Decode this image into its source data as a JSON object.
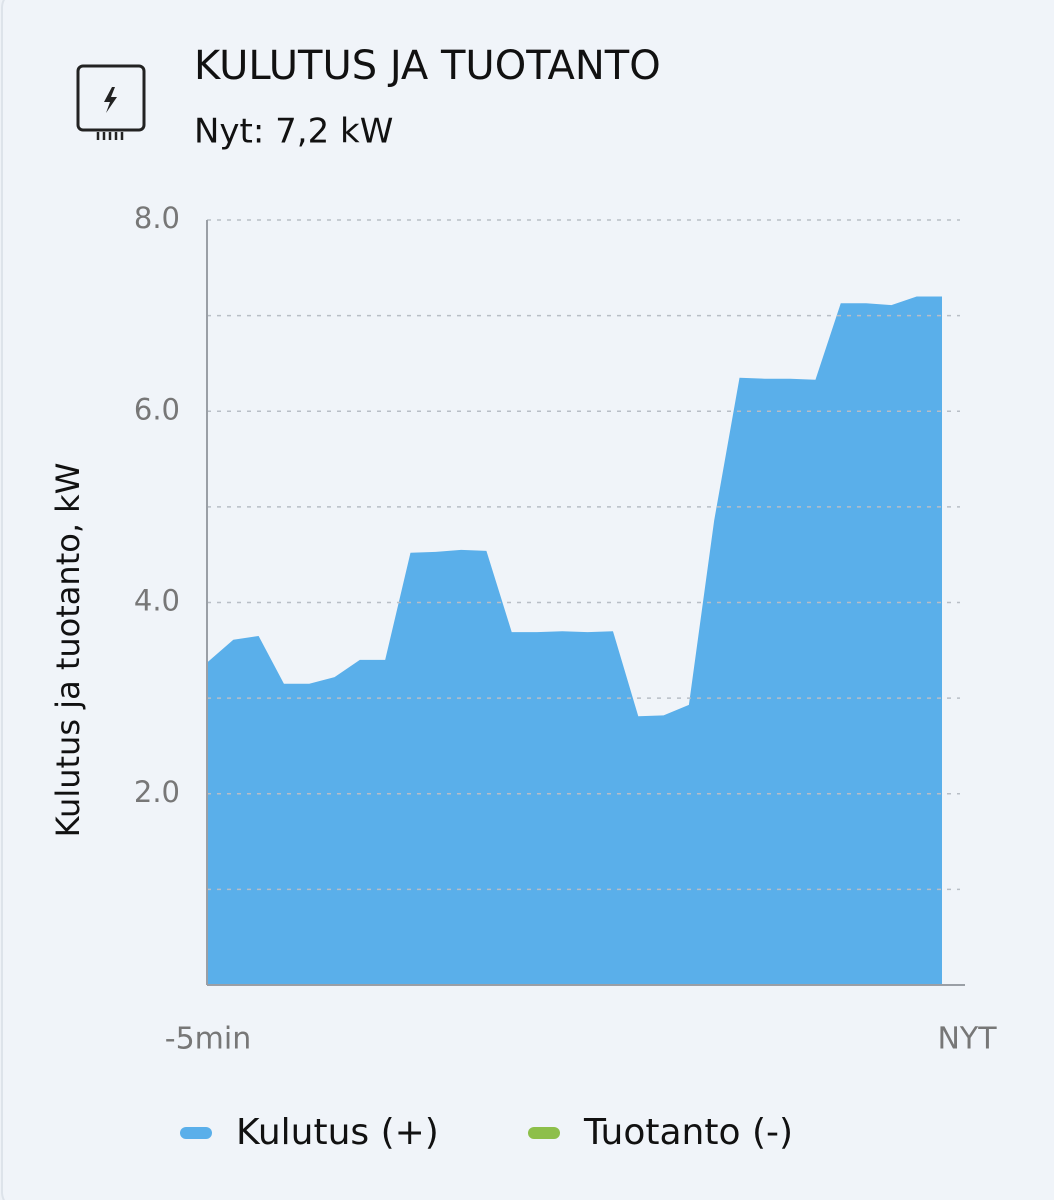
{
  "header": {
    "title": "KULUTUS JA TUOTANTO",
    "subtitle": "Nyt: 7,2 kW"
  },
  "chart_data": {
    "type": "area",
    "y_label": "Kulutus ja tuotanto, kW",
    "categories": [
      "-5min",
      null,
      null,
      null,
      null,
      null,
      null,
      null,
      null,
      null,
      null,
      null,
      null,
      null,
      null,
      null,
      null,
      null,
      null,
      null,
      null,
      null,
      null,
      null,
      null,
      null,
      null,
      null,
      null,
      "NYT"
    ],
    "series": [
      {
        "name": "Kulutus (+)",
        "color": "#5aafea",
        "values": [
          3.38,
          3.61,
          3.65,
          3.15,
          3.15,
          3.22,
          3.4,
          3.4,
          4.52,
          4.53,
          4.55,
          4.54,
          3.69,
          3.69,
          3.7,
          3.69,
          3.7,
          2.81,
          2.82,
          2.93,
          4.86,
          6.35,
          6.34,
          6.34,
          6.33,
          7.13,
          7.13,
          7.11,
          7.2,
          7.2
        ]
      },
      {
        "name": "Tuotanto (-)",
        "color": "#8dbf4a"
      }
    ],
    "ylim": [
      0,
      8
    ],
    "yticks": [
      {
        "value": 2,
        "label": "2.0"
      },
      {
        "value": 4,
        "label": "4.0"
      },
      {
        "value": 6,
        "label": "6.0"
      },
      {
        "value": 8,
        "label": "8.0"
      }
    ],
    "minor_yticks": [
      1,
      3,
      5,
      7
    ],
    "grid": true
  }
}
